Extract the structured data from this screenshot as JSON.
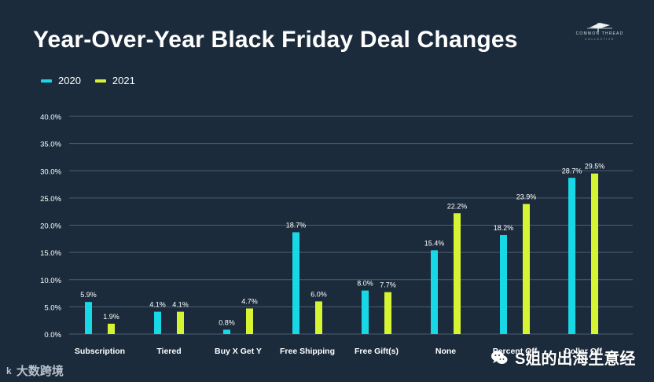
{
  "title": "Year-Over-Year Black Friday Deal Changes",
  "brand": {
    "name": "COMMON THREAD",
    "subtitle": "COLLECTIVE"
  },
  "legend": [
    {
      "label": "2020",
      "color": "#19d8e6"
    },
    {
      "label": "2021",
      "color": "#d7f432"
    }
  ],
  "watermarks": {
    "left_mark": "k",
    "left_text": "大数跨境",
    "right_text": "S姐的出海生意经"
  },
  "chart_data": {
    "type": "bar",
    "categories": [
      "Subscription",
      "Tiered",
      "Buy X Get Y",
      "Free Shipping",
      "Free Gift(s)",
      "None",
      "Percent Off",
      "Dollar Off"
    ],
    "series": [
      {
        "name": "2020",
        "color": "#19d8e6",
        "values": [
          5.9,
          4.1,
          0.8,
          18.7,
          8.0,
          15.4,
          18.2,
          28.7
        ],
        "labels": [
          "5.9%",
          "4.1%",
          "0.8%",
          "18.7%",
          "8.0%",
          "15.4%",
          "18.2%",
          "28.7%"
        ]
      },
      {
        "name": "2021",
        "color": "#d7f432",
        "values": [
          1.9,
          4.1,
          4.7,
          6.0,
          7.7,
          22.2,
          23.9,
          29.5
        ],
        "labels": [
          "1.9%",
          "4.1%",
          "4.7%",
          "6.0%",
          "7.7%",
          "22.2%",
          "23.9%",
          "29.5%"
        ]
      }
    ],
    "yticks": [
      "0.0%",
      "5.0%",
      "10.0%",
      "15.0%",
      "20.0%",
      "25.0%",
      "30.0%",
      "35.0%",
      "40.0%"
    ],
    "ylim": [
      0,
      40
    ],
    "xlabel": "",
    "ylabel": "",
    "grid": true,
    "legend_position": "top-left"
  }
}
